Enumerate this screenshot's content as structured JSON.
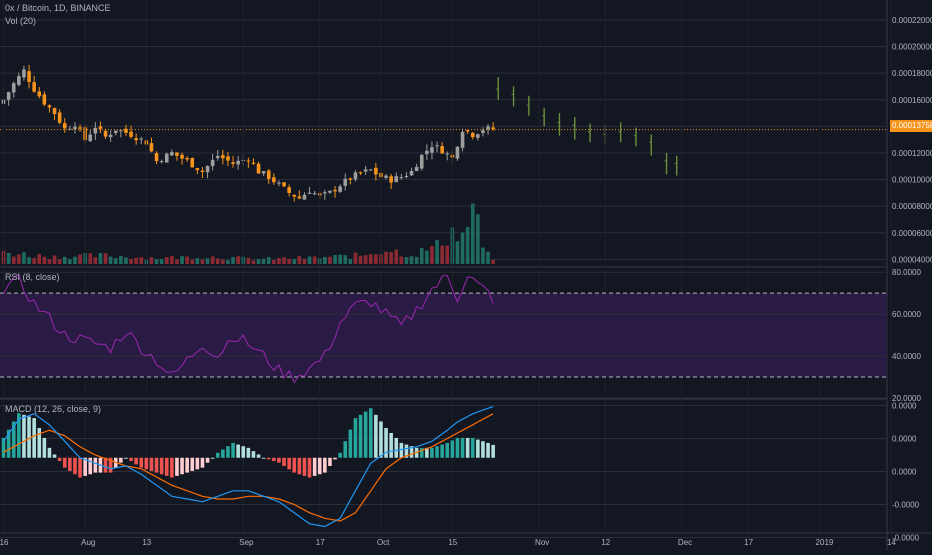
{
  "header": {
    "symbol_line": "0x / Bitcoin, 1D, BINANCE",
    "volume_label": "Vol (20)"
  },
  "rsi_pane": {
    "title": "RSI (8, close)"
  },
  "macd_pane": {
    "title": "MACD (12, 26, close, 9)"
  },
  "colors": {
    "background": "#131722",
    "up_candle": "#9e9e9e",
    "down_candle": "#f7931a",
    "forecast_candle": "#6b8e3a",
    "vol_up": "#1f6b61",
    "vol_down": "#8c2a33",
    "rsi_line": "#9c27b0",
    "rsi_band": "#2a1b45",
    "macd_line": "#2196f3",
    "signal_line": "#ff6d00",
    "hist_pos": "#26a69a",
    "hist_pos_light": "#b2dfdb",
    "hist_neg": "#ef5350",
    "hist_neg_light": "#ffcdd2",
    "current_price": "#f7931a"
  },
  "current_price": {
    "value": 0.00013758,
    "label": "0.00013758"
  },
  "chart_data": [
    {
      "type": "candlestick",
      "title": "0x / Bitcoin, 1D, BINANCE",
      "ylabel": "",
      "ylim": [
        3.5e-05,
        0.000235
      ],
      "y_ticks": [
        "0.00022000",
        "0.00020000",
        "0.00018000",
        "0.00016000",
        "0.00014000",
        "0.00012000",
        "0.00010000",
        "0.00008000",
        "0.00006000",
        "0.00004000"
      ],
      "y_tick_values": [
        0.00022,
        0.0002,
        0.00018,
        0.00016,
        0.00014,
        0.00012,
        0.0001,
        8e-05,
        6e-05,
        4e-05
      ],
      "x_ticks": [
        "16",
        "Aug",
        "13",
        "Sep",
        "17",
        "Oct",
        "15",
        "Nov",
        "12",
        "Dec",
        "17",
        "2019",
        "14"
      ],
      "x_tick_index": [
        0,
        16,
        28,
        47,
        62,
        74,
        88,
        105,
        118,
        133,
        146,
        160,
        174
      ],
      "candles_start_label": "2018-07-16",
      "anchor_closes": [
        [
          0,
          0.00016
        ],
        [
          2,
          0.000172
        ],
        [
          4,
          0.000182
        ],
        [
          6,
          0.000168
        ],
        [
          8,
          0.000158
        ],
        [
          10,
          0.00015
        ],
        [
          12,
          0.000138
        ],
        [
          14,
          0.000142
        ],
        [
          16,
          0.00013
        ],
        [
          18,
          0.00014
        ],
        [
          20,
          0.000132
        ],
        [
          22,
          0.000138
        ],
        [
          25,
          0.000134
        ],
        [
          28,
          0.000128
        ],
        [
          30,
          0.000114
        ],
        [
          33,
          0.00012
        ],
        [
          36,
          0.000114
        ],
        [
          39,
          0.000106
        ],
        [
          42,
          0.000118
        ],
        [
          45,
          0.000112
        ],
        [
          48,
          0.000116
        ],
        [
          50,
          0.000106
        ],
        [
          52,
          0.000102
        ],
        [
          54,
          9.6e-05
        ],
        [
          56,
          9e-05
        ],
        [
          58,
          8.6e-05
        ],
        [
          60,
          9.2e-05
        ],
        [
          62,
          8.7e-05
        ],
        [
          64,
          9e-05
        ],
        [
          66,
          9.6e-05
        ],
        [
          68,
          0.000101
        ],
        [
          70,
          0.000105
        ],
        [
          72,
          0.000107
        ],
        [
          74,
          0.000102
        ],
        [
          76,
          0.0001
        ],
        [
          78,
          0.000102
        ],
        [
          80,
          0.000106
        ],
        [
          82,
          0.000118
        ],
        [
          84,
          0.000126
        ],
        [
          86,
          0.000122
        ],
        [
          88,
          0.000116
        ],
        [
          90,
          0.000138
        ],
        [
          92,
          0.000134
        ],
        [
          94,
          0.000138
        ]
      ],
      "forecast_bars": [
        [
          97,
          0.000168,
          0.000177,
          0.00016
        ],
        [
          100,
          0.000164,
          0.00017,
          0.000155
        ],
        [
          103,
          0.000156,
          0.000163,
          0.000148
        ],
        [
          106,
          0.000148,
          0.000154,
          0.00014
        ],
        [
          109,
          0.000143,
          0.00015,
          0.000133
        ],
        [
          112,
          0.000141,
          0.000147,
          0.00013
        ],
        [
          115,
          0.000136,
          0.000142,
          0.000128
        ],
        [
          118,
          0.000134,
          0.000141,
          0.000127
        ],
        [
          121,
          0.000136,
          0.000143,
          0.000128
        ],
        [
          124,
          0.000133,
          0.000139,
          0.000125
        ],
        [
          127,
          0.000128,
          0.000134,
          0.000118
        ],
        [
          130,
          0.000114,
          0.00012,
          0.000104
        ],
        [
          132,
          0.000112,
          0.000118,
          0.000103
        ]
      ]
    },
    {
      "type": "bar",
      "title": "Vol (20)",
      "anchors": [
        [
          0,
          0.2
        ],
        [
          5,
          0.15
        ],
        [
          10,
          0.12
        ],
        [
          20,
          0.14
        ],
        [
          30,
          0.1
        ],
        [
          40,
          0.12
        ],
        [
          50,
          0.08
        ],
        [
          60,
          0.1
        ],
        [
          70,
          0.14
        ],
        [
          75,
          0.25
        ],
        [
          80,
          0.15
        ],
        [
          85,
          0.3
        ],
        [
          88,
          0.55
        ],
        [
          90,
          0.45
        ],
        [
          92,
          0.95
        ],
        [
          94,
          0.3
        ],
        [
          96,
          0.05
        ]
      ]
    },
    {
      "type": "line",
      "title": "RSI (8, close)",
      "ylim": [
        20,
        82
      ],
      "y_ticks": [
        "80.0000",
        "60.0000",
        "40.0000",
        "20.0000"
      ],
      "y_tick_values": [
        80,
        60,
        40,
        20
      ],
      "bands": [
        30,
        70
      ],
      "anchors": [
        [
          0,
          72
        ],
        [
          3,
          76
        ],
        [
          6,
          65
        ],
        [
          9,
          58
        ],
        [
          12,
          50
        ],
        [
          15,
          48
        ],
        [
          18,
          46
        ],
        [
          21,
          44
        ],
        [
          24,
          52
        ],
        [
          27,
          44
        ],
        [
          30,
          38
        ],
        [
          33,
          30
        ],
        [
          36,
          38
        ],
        [
          39,
          46
        ],
        [
          42,
          40
        ],
        [
          45,
          50
        ],
        [
          48,
          46
        ],
        [
          51,
          40
        ],
        [
          54,
          33
        ],
        [
          57,
          30
        ],
        [
          60,
          34
        ],
        [
          63,
          40
        ],
        [
          66,
          56
        ],
        [
          69,
          64
        ],
        [
          72,
          66
        ],
        [
          75,
          60
        ],
        [
          78,
          54
        ],
        [
          81,
          62
        ],
        [
          84,
          72
        ],
        [
          87,
          78
        ],
        [
          89,
          68
        ],
        [
          91,
          79
        ],
        [
          93,
          74
        ],
        [
          95,
          70
        ],
        [
          96,
          64
        ]
      ]
    },
    {
      "type": "line",
      "title": "MACD (12, 26, close, 9)",
      "ylim": [
        -1.35e-05,
        1.05e-05
      ],
      "y_ticks": [
        "0.0000",
        "0.0000",
        "0.0000",
        "-0.0000",
        "-0.0000"
      ],
      "y_tick_values": [
        9.5e-06,
        3.5e-06,
        -2.5e-06,
        -8.5e-06,
        -1.45e-05
      ],
      "macd_anchors": [
        [
          0,
          3
        ],
        [
          3,
          7
        ],
        [
          6,
          8
        ],
        [
          9,
          6
        ],
        [
          12,
          3
        ],
        [
          15,
          0
        ],
        [
          18,
          -1
        ],
        [
          21,
          -2
        ],
        [
          24,
          -1.5
        ],
        [
          27,
          -3
        ],
        [
          30,
          -5
        ],
        [
          33,
          -7
        ],
        [
          36,
          -7.5
        ],
        [
          39,
          -8
        ],
        [
          42,
          -7
        ],
        [
          45,
          -6
        ],
        [
          48,
          -6
        ],
        [
          51,
          -7
        ],
        [
          54,
          -8
        ],
        [
          57,
          -10
        ],
        [
          60,
          -12
        ],
        [
          63,
          -12.5
        ],
        [
          66,
          -11
        ],
        [
          69,
          -6
        ],
        [
          72,
          -1
        ],
        [
          75,
          1
        ],
        [
          78,
          1.5
        ],
        [
          81,
          2
        ],
        [
          84,
          3
        ],
        [
          87,
          5
        ],
        [
          89,
          6.5
        ],
        [
          92,
          8
        ],
        [
          95,
          9
        ],
        [
          96,
          9.3
        ]
      ],
      "signal_anchors": [
        [
          0,
          1
        ],
        [
          3,
          2.5
        ],
        [
          6,
          4
        ],
        [
          9,
          5
        ],
        [
          12,
          4
        ],
        [
          15,
          2
        ],
        [
          18,
          0.5
        ],
        [
          21,
          -0.5
        ],
        [
          24,
          -1.5
        ],
        [
          27,
          -2
        ],
        [
          30,
          -3.5
        ],
        [
          33,
          -5
        ],
        [
          36,
          -6
        ],
        [
          39,
          -7
        ],
        [
          42,
          -7.5
        ],
        [
          45,
          -7.5
        ],
        [
          48,
          -7
        ],
        [
          51,
          -7
        ],
        [
          54,
          -7.5
        ],
        [
          57,
          -8.5
        ],
        [
          60,
          -10
        ],
        [
          63,
          -11
        ],
        [
          66,
          -11.5
        ],
        [
          69,
          -10
        ],
        [
          72,
          -6
        ],
        [
          75,
          -2
        ],
        [
          78,
          0
        ],
        [
          81,
          1
        ],
        [
          84,
          2
        ],
        [
          87,
          3.5
        ],
        [
          89,
          4.5
        ],
        [
          92,
          6
        ],
        [
          95,
          7.5
        ],
        [
          96,
          8
        ]
      ]
    }
  ]
}
